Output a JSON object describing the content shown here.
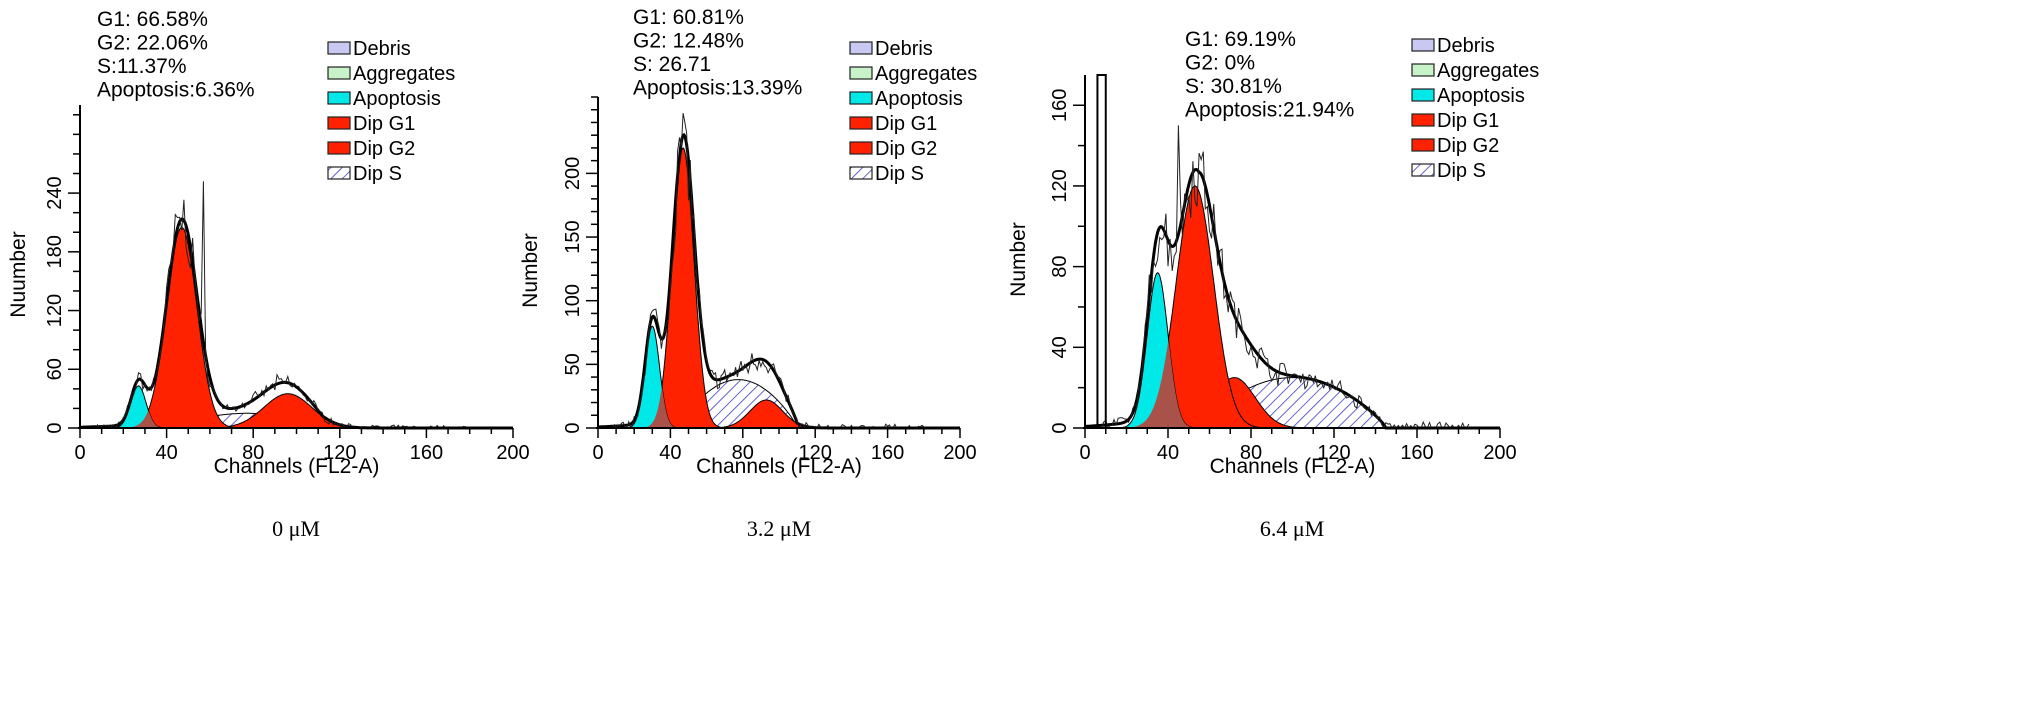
{
  "chart_data": [
    {
      "type": "area",
      "caption": "0 μM",
      "xlabel": "Channels (FL2-A)",
      "ylabel": "Nuumber",
      "xlim": [
        0,
        200
      ],
      "ylim": [
        0,
        330
      ],
      "xticks": [
        0,
        40,
        80,
        120,
        160,
        200
      ],
      "yticks": [
        0,
        60,
        120,
        180,
        240
      ],
      "yminor": 20,
      "stats": [
        "G1: 66.58%",
        "G2: 22.06%",
        "S:11.37%",
        "Apoptosis:6.36%"
      ],
      "legend": [
        "Debris",
        "Aggregates",
        "Apoptosis",
        "Dip G1",
        "Dip G2",
        "Dip S"
      ],
      "components": {
        "apoptosis": {
          "center": 27,
          "height": 43,
          "sd": 3.5
        },
        "g1": {
          "center": 47,
          "height": 205,
          "sd": 7
        },
        "g2": {
          "center": 96,
          "height": 35,
          "sd": 11
        },
        "s": {
          "start": 42,
          "end": 112,
          "height": 15
        }
      },
      "raw_peak": {
        "x": 57,
        "y": 252
      }
    },
    {
      "type": "area",
      "caption": "3.2 μM",
      "xlabel": "Channels (FL2-A)",
      "ylabel": "Number",
      "xlim": [
        0,
        200
      ],
      "ylim": [
        0,
        260
      ],
      "xticks": [
        0,
        40,
        80,
        120,
        160,
        200
      ],
      "yticks": [
        0,
        50,
        100,
        150,
        200
      ],
      "yminor": 10,
      "stats": [
        "G1: 60.81%",
        "G2: 12.48%",
        "S: 26.71",
        "Apoptosis:13.39%"
      ],
      "legend": [
        "Debris",
        "Aggregates",
        "Apoptosis",
        "Dip G1",
        "Dip G2",
        "Dip S"
      ],
      "components": {
        "apoptosis": {
          "center": 30,
          "height": 80,
          "sd": 4
        },
        "g1": {
          "center": 47,
          "height": 220,
          "sd": 6
        },
        "g2": {
          "center": 93,
          "height": 22,
          "sd": 9
        },
        "s": {
          "start": 45,
          "end": 110,
          "height": 38
        }
      },
      "raw_peak": {
        "x": 48,
        "y": 240
      }
    },
    {
      "type": "area",
      "caption": "6.4 μM",
      "xlabel": "Channels (FL2-A)",
      "ylabel": "Number",
      "xlim": [
        0,
        200
      ],
      "ylim": [
        0,
        175
      ],
      "xticks": [
        0,
        40,
        80,
        120,
        160,
        200
      ],
      "yticks": [
        0,
        40,
        80,
        120,
        160
      ],
      "yminor": 20,
      "stats": [
        "G1: 69.19%",
        "G2: 0%",
        "S: 30.81%",
        "Apoptosis:21.94%"
      ],
      "legend": [
        "Debris",
        "Aggregates",
        "Apoptosis",
        "Dip G1",
        "Dip G2",
        "Dip S"
      ],
      "components": {
        "apoptosis": {
          "center": 35,
          "height": 77,
          "sd": 5
        },
        "g1": {
          "center": 53,
          "height": 120,
          "sd": 9
        },
        "g2": {
          "center": 72,
          "height": 25,
          "sd": 10
        },
        "s": {
          "start": 55,
          "end": 145,
          "height": 25
        }
      },
      "debris_gate": [
        6,
        10
      ],
      "raw_peak": {
        "x": 45,
        "y": 150
      }
    }
  ],
  "colors": {
    "debris": "#c8c8f2",
    "aggregates": "#c8f2c8",
    "apoptosis": "#00e8e8",
    "g1": "#ff2200",
    "g2": "#ff2200",
    "overlap": "#a8524a",
    "s_hatch": "#3030c0"
  }
}
